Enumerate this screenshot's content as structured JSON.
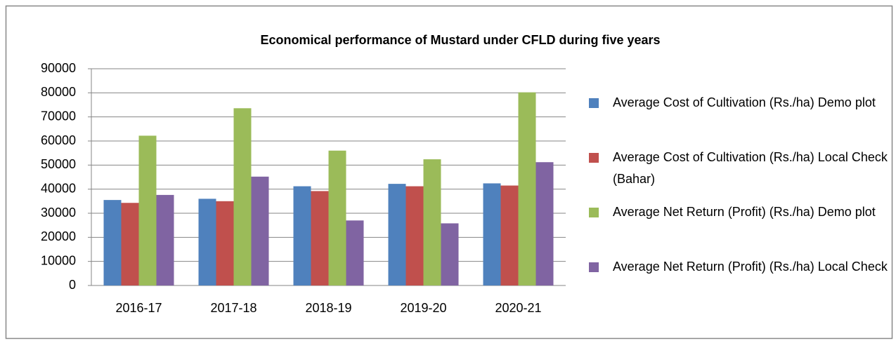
{
  "chart_data": {
    "type": "bar",
    "title": "Economical performance of Mustard under CFLD  during five years",
    "categories": [
      "2016-17",
      "2017-18",
      "2018-19",
      "2019-20",
      "2020-21"
    ],
    "series": [
      {
        "name": "Average Cost of Cultivation (Rs./ha) Demo plot",
        "color": "#4f81bd",
        "values": [
          35500,
          36000,
          41200,
          42200,
          42400
        ]
      },
      {
        "name": "Average Cost of Cultivation (Rs./ha) Local Check (Bahar)",
        "color": "#c0504d",
        "values": [
          34300,
          35000,
          39200,
          41200,
          41500
        ]
      },
      {
        "name": "Average Net Return (Profit) (Rs./ha) Demo plot",
        "color": "#9bbb59",
        "values": [
          62200,
          73600,
          56000,
          52400,
          80200
        ]
      },
      {
        "name": "Average Net Return (Profit) (Rs./ha) Local Check",
        "color": "#8064a2",
        "values": [
          37600,
          45200,
          27000,
          25800,
          51200
        ]
      }
    ],
    "ylim": [
      0,
      90000
    ],
    "yticks": [
      0,
      10000,
      20000,
      30000,
      40000,
      50000,
      60000,
      70000,
      80000,
      90000
    ],
    "grid": true,
    "legend": "right"
  }
}
